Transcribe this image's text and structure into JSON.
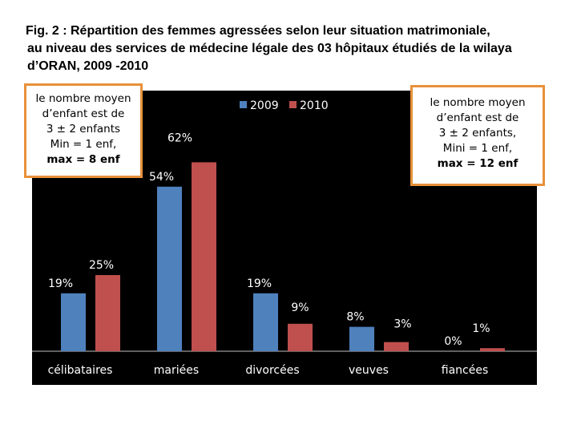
{
  "title": {
    "line1": "Fig. 2 : Répartition des femmes agressées selon leur situation matrimoniale,",
    "line2": "au niveau des services de médecine légale des 03 hôpitaux étudiés de la wilaya",
    "line3": "d’ORAN, 2009 -2010"
  },
  "notes": {
    "left": [
      "le nombre moyen",
      "d’enfant est de",
      "3 ± 2 enfants",
      "Min = 1 enf,",
      "max = 8 enf"
    ],
    "right": [
      "le nombre moyen",
      "d’enfant est de",
      "3 ± 2 enfants,",
      "Mini = 1 enf,",
      "max = 12 enf"
    ]
  },
  "colors": {
    "series_2009": "#4f81bd",
    "series_2010": "#c0504d",
    "background": "#000000",
    "note_border": "#e8913a"
  },
  "chart_data": {
    "type": "bar",
    "categories": [
      "célibataires",
      "mariées",
      "divorcées",
      "veuves",
      "fiancées"
    ],
    "series": [
      {
        "name": "2009",
        "values": [
          19,
          54,
          19,
          8,
          0
        ]
      },
      {
        "name": "2010",
        "values": [
          25,
          62,
          9,
          3,
          1
        ]
      }
    ],
    "data_labels": [
      [
        "19%",
        "54%",
        "19%",
        "8%",
        "0%"
      ],
      [
        "25%",
        "62%",
        "9%",
        "3%",
        "1%"
      ]
    ],
    "ylim": [
      0,
      75
    ],
    "legend": "top",
    "grid": false,
    "title": "",
    "xlabel": "",
    "ylabel": ""
  }
}
